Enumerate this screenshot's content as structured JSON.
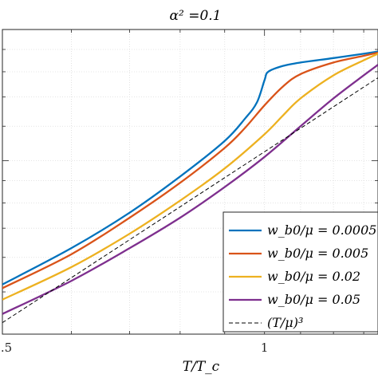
{
  "chart_data": {
    "type": "line",
    "title": "α² =0.1",
    "xlabel": "T/T_c",
    "ylabel": "",
    "x_scale": "log",
    "y_scale": "log",
    "xlim": [
      0.5,
      1.35
    ],
    "ylim": [
      0.4,
      2.0
    ],
    "xticks": [
      {
        "value": 0.5,
        "label": ".5"
      },
      {
        "value": 1.0,
        "label": "1"
      }
    ],
    "grid": true,
    "legend_position": "bottom-right",
    "series": [
      {
        "name": "w_b0/μ = 0.0005",
        "color": "#0072bd",
        "x": [
          0.5,
          0.6,
          0.7,
          0.8,
          0.9,
          0.95,
          0.98,
          1.0,
          1.01,
          1.05,
          1.1,
          1.2,
          1.3,
          1.35
        ],
        "y": [
          0.52,
          0.63,
          0.76,
          0.92,
          1.11,
          1.25,
          1.36,
          1.53,
          1.6,
          1.65,
          1.68,
          1.72,
          1.76,
          1.78
        ]
      },
      {
        "name": "w_b0/μ = 0.005",
        "color": "#d95319",
        "x": [
          0.5,
          0.6,
          0.7,
          0.8,
          0.9,
          0.95,
          1.0,
          1.05,
          1.1,
          1.2,
          1.3,
          1.35
        ],
        "y": [
          0.51,
          0.61,
          0.74,
          0.89,
          1.07,
          1.19,
          1.34,
          1.48,
          1.58,
          1.68,
          1.74,
          1.77
        ]
      },
      {
        "name": "w_b0/μ = 0.02",
        "color": "#edb120",
        "x": [
          0.5,
          0.6,
          0.7,
          0.8,
          0.9,
          1.0,
          1.05,
          1.1,
          1.2,
          1.3,
          1.35
        ],
        "y": [
          0.48,
          0.57,
          0.68,
          0.81,
          0.96,
          1.15,
          1.27,
          1.39,
          1.57,
          1.7,
          1.76
        ]
      },
      {
        "name": "w_b0/μ = 0.05",
        "color": "#7e2f8e",
        "x": [
          0.5,
          0.6,
          0.7,
          0.8,
          0.9,
          1.0,
          1.1,
          1.2,
          1.3,
          1.35
        ],
        "y": [
          0.445,
          0.53,
          0.63,
          0.74,
          0.87,
          1.02,
          1.2,
          1.39,
          1.57,
          1.66
        ]
      },
      {
        "name": "(T/μ)³",
        "color": "#000000",
        "dashed": true,
        "x": [
          0.5,
          1.35
        ],
        "y": [
          0.425,
          1.55
        ]
      }
    ]
  }
}
